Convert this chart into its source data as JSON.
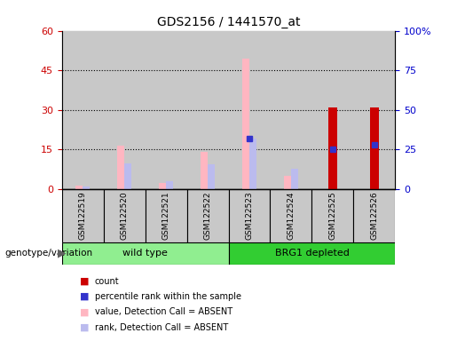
{
  "title": "GDS2156 / 1441570_at",
  "samples": [
    "GSM122519",
    "GSM122520",
    "GSM122521",
    "GSM122522",
    "GSM122523",
    "GSM122524",
    "GSM122525",
    "GSM122526"
  ],
  "count": [
    0,
    0,
    0,
    0,
    0,
    0,
    31,
    31
  ],
  "percentile_rank": [
    0,
    0,
    0,
    0,
    32,
    0,
    25,
    28
  ],
  "value_absent": [
    1.5,
    16.5,
    2.5,
    14.0,
    49.5,
    5.0,
    0,
    0
  ],
  "rank_absent": [
    2.0,
    16.5,
    5.0,
    15.5,
    32.0,
    13.0,
    0,
    0
  ],
  "left_ylim": [
    0,
    60
  ],
  "left_yticks": [
    0,
    15,
    30,
    45,
    60
  ],
  "right_yticks": [
    0,
    25,
    50,
    75,
    100
  ],
  "right_yticklabels": [
    "0",
    "25",
    "50",
    "75",
    "100%"
  ],
  "colors": {
    "count": "#CC0000",
    "percentile_rank": "#3333CC",
    "value_absent": "#FFB6C1",
    "rank_absent": "#BBBBEE",
    "left_tick_color": "#CC0000",
    "right_tick_color": "#0000CC",
    "grid": "black",
    "bg": "white",
    "col_bg": "#C8C8C8"
  },
  "bar_width": 0.18,
  "wt_color": "#90EE90",
  "brg_color": "#32CD32",
  "legend_items": [
    {
      "color": "#CC0000",
      "label": "count"
    },
    {
      "color": "#3333CC",
      "label": "percentile rank within the sample"
    },
    {
      "color": "#FFB6C1",
      "label": "value, Detection Call = ABSENT"
    },
    {
      "color": "#BBBBEE",
      "label": "rank, Detection Call = ABSENT"
    }
  ]
}
